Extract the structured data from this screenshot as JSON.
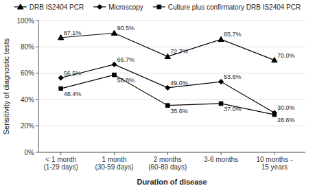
{
  "chart_data": {
    "type": "line",
    "categories": [
      "< 1 month\n(1-29 days)",
      "1 month\n(30-59 days)",
      "2 months\n(60-89 days)",
      "3-6 months",
      "10 months -\n15 years"
    ],
    "series": [
      {
        "name": "DRB IS2404 PCR",
        "color": "#000000",
        "marker": "triangle",
        "values": [
          87.1,
          90.5,
          72.7,
          85.7,
          70.0
        ],
        "value_labels": [
          "87.1%",
          "90.5%",
          "72.7%",
          "85.7%",
          "70.0%"
        ]
      },
      {
        "name": "Microscopy",
        "color": "#000000",
        "marker": "diamond",
        "values": [
          56.5,
          66.7,
          49.0,
          53.6,
          30.0
        ],
        "value_labels": [
          "56.5%",
          "66.7%",
          "49.0%",
          "53.6%",
          "30.0%"
        ]
      },
      {
        "name": "Culture plus confirmatory DRB IS2404 PCR",
        "color": "#000000",
        "marker": "square",
        "values": [
          48.4,
          58.8,
          35.6,
          37.0,
          28.6
        ],
        "value_labels": [
          "48.4%",
          "58.8%",
          "35.6%",
          "37.0%",
          "28.6%"
        ]
      }
    ],
    "xlabel": "Duration of disease",
    "ylabel": "Sensitivity of diagnostic tests",
    "ylim": [
      0,
      100
    ],
    "yticks": [
      {
        "value": 0,
        "label": "0%"
      },
      {
        "value": 20,
        "label": "20%"
      },
      {
        "value": 40,
        "label": "40%"
      },
      {
        "value": 60,
        "label": "60%"
      },
      {
        "value": 80,
        "label": "80%"
      },
      {
        "value": 100,
        "label": "100%"
      }
    ],
    "grid": true,
    "legend": "top",
    "data_labels": true
  }
}
